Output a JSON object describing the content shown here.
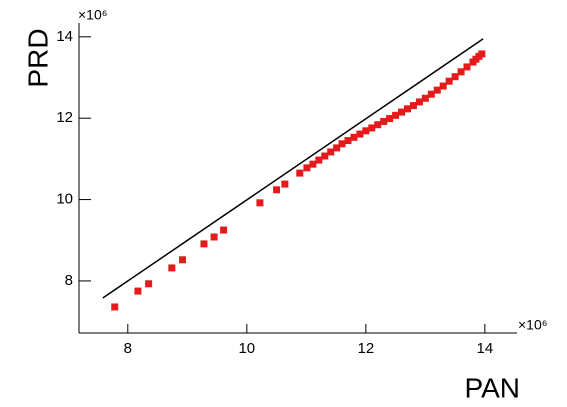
{
  "chart_data": {
    "type": "scatter",
    "x_label": "PAN",
    "y_label": "PRD",
    "x_multiplier": "×10⁶",
    "y_multiplier": "×10⁶",
    "xlim": [
      7.18,
      14.54
    ],
    "ylim": [
      6.72,
      14.34
    ],
    "xticks": [
      8,
      10,
      12,
      14
    ],
    "yticks": [
      8,
      10,
      12,
      14
    ],
    "reference_line": {
      "x": [
        7.58,
        13.97
      ],
      "y": [
        7.58,
        13.95
      ],
      "color": "#000000"
    },
    "series": [
      {
        "color": "#e41a1c",
        "x": [
          7.78,
          8.17,
          8.35,
          8.74,
          8.92,
          9.28,
          9.45,
          9.61,
          10.22,
          10.5,
          10.64,
          10.89,
          11.01,
          11.11,
          11.21,
          11.31,
          11.41,
          11.51,
          11.6,
          11.7,
          11.8,
          11.9,
          12.0,
          12.1,
          12.2,
          12.3,
          12.4,
          12.5,
          12.6,
          12.7,
          12.8,
          12.9,
          13.0,
          13.1,
          13.2,
          13.3,
          13.4,
          13.5,
          13.6,
          13.7,
          13.8,
          13.85,
          13.9,
          13.95
        ],
        "values": [
          7.36,
          7.75,
          7.93,
          8.32,
          8.52,
          8.91,
          9.08,
          9.25,
          9.92,
          10.24,
          10.38,
          10.65,
          10.78,
          10.87,
          10.97,
          11.07,
          11.17,
          11.27,
          11.37,
          11.45,
          11.53,
          11.61,
          11.69,
          11.76,
          11.84,
          11.92,
          11.99,
          12.07,
          12.15,
          12.23,
          12.31,
          12.4,
          12.49,
          12.59,
          12.69,
          12.79,
          12.91,
          13.02,
          13.14,
          13.26,
          13.38,
          13.45,
          13.52,
          13.58
        ]
      }
    ]
  }
}
